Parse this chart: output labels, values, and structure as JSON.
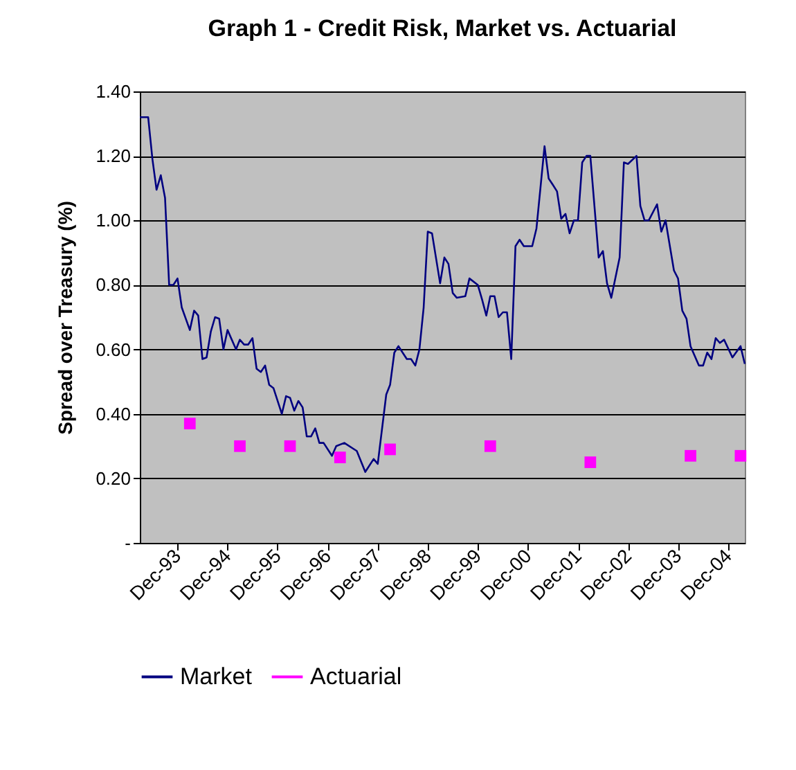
{
  "chart_data": {
    "type": "line",
    "title": "Graph 1 - Credit Risk, Market vs. Actuarial",
    "ylabel": "Spread over Treasury (%)",
    "xlim": [
      "1993-03",
      "2005-04"
    ],
    "xticks": [
      {
        "value": "1993-12",
        "label": "Dec-93"
      },
      {
        "value": "1994-12",
        "label": "Dec-94"
      },
      {
        "value": "1995-12",
        "label": "Dec-95"
      },
      {
        "value": "1996-12",
        "label": "Dec-96"
      },
      {
        "value": "1997-12",
        "label": "Dec-97"
      },
      {
        "value": "1998-12",
        "label": "Dec-98"
      },
      {
        "value": "1999-12",
        "label": "Dec-99"
      },
      {
        "value": "2000-12",
        "label": "Dec-00"
      },
      {
        "value": "2001-12",
        "label": "Dec-01"
      },
      {
        "value": "2002-12",
        "label": "Dec-02"
      },
      {
        "value": "2003-12",
        "label": "Dec-03"
      },
      {
        "value": "2004-12",
        "label": "Dec-04"
      }
    ],
    "ylim": [
      0,
      1.4
    ],
    "yticks": [
      {
        "value": 0,
        "label": "-"
      },
      {
        "value": 0.2,
        "label": "0.20"
      },
      {
        "value": 0.4,
        "label": "0.40"
      },
      {
        "value": 0.6,
        "label": "0.60"
      },
      {
        "value": 0.8,
        "label": "0.80"
      },
      {
        "value": 1.0,
        "label": "1.00"
      },
      {
        "value": 1.2,
        "label": "1.20"
      },
      {
        "value": 1.4,
        "label": "1.40"
      }
    ],
    "grid": "y",
    "legend": "bottom",
    "series": [
      {
        "name": "Market",
        "type": "line",
        "color": "#000080",
        "x": [
          "1993-03",
          "1993-05",
          "1993-06",
          "1993-07",
          "1993-08",
          "1993-09",
          "1993-10",
          "1993-11",
          "1993-12",
          "1994-01",
          "1994-03",
          "1994-04",
          "1994-05",
          "1994-06",
          "1994-07",
          "1994-08",
          "1994-09",
          "1994-10",
          "1994-11",
          "1994-12",
          "1995-02",
          "1995-03",
          "1995-04",
          "1995-05",
          "1995-06",
          "1995-07",
          "1995-08",
          "1995-09",
          "1995-10",
          "1995-11",
          "1996-01",
          "1996-02",
          "1996-03",
          "1996-04",
          "1996-05",
          "1996-06",
          "1996-07",
          "1996-08",
          "1996-09",
          "1996-10",
          "1996-11",
          "1997-01",
          "1997-02",
          "1997-04",
          "1997-07",
          "1997-09",
          "1997-11",
          "1997-12",
          "1998-02",
          "1998-03",
          "1998-04",
          "1998-05",
          "1998-07",
          "1998-08",
          "1998-09",
          "1998-10",
          "1998-11",
          "1998-12",
          "1999-01",
          "1999-03",
          "1999-04",
          "1999-05",
          "1999-06",
          "1999-07",
          "1999-09",
          "1999-10",
          "1999-12",
          "2000-01",
          "2000-02",
          "2000-03",
          "2000-04",
          "2000-05",
          "2000-06",
          "2000-07",
          "2000-08",
          "2000-09",
          "2000-10",
          "2000-11",
          "2001-01",
          "2001-02",
          "2001-04",
          "2001-05",
          "2001-06",
          "2001-07",
          "2001-08",
          "2001-09",
          "2001-10",
          "2001-11",
          "2001-12",
          "2002-01",
          "2002-02",
          "2002-03",
          "2002-05",
          "2002-06",
          "2002-07",
          "2002-08",
          "2002-10",
          "2002-11",
          "2002-12",
          "2003-02",
          "2003-03",
          "2003-04",
          "2003-05",
          "2003-07",
          "2003-08",
          "2003-09",
          "2003-11",
          "2003-12",
          "2004-01",
          "2004-02",
          "2004-03",
          "2004-05",
          "2004-06",
          "2004-07",
          "2004-08",
          "2004-09",
          "2004-10",
          "2004-11",
          "2005-01",
          "2005-03",
          "2005-04"
        ],
        "values": [
          1.32,
          1.32,
          1.19,
          1.095,
          1.14,
          1.07,
          0.8,
          0.8,
          0.82,
          0.73,
          0.66,
          0.72,
          0.705,
          0.57,
          0.575,
          0.655,
          0.7,
          0.695,
          0.6,
          0.66,
          0.6,
          0.63,
          0.615,
          0.615,
          0.635,
          0.54,
          0.53,
          0.55,
          0.49,
          0.48,
          0.4,
          0.455,
          0.45,
          0.41,
          0.44,
          0.42,
          0.33,
          0.33,
          0.355,
          0.31,
          0.31,
          0.27,
          0.3,
          0.31,
          0.285,
          0.22,
          0.26,
          0.245,
          0.46,
          0.49,
          0.59,
          0.61,
          0.57,
          0.57,
          0.55,
          0.6,
          0.73,
          0.965,
          0.96,
          0.805,
          0.885,
          0.865,
          0.775,
          0.76,
          0.765,
          0.82,
          0.8,
          0.755,
          0.705,
          0.765,
          0.765,
          0.7,
          0.715,
          0.715,
          0.57,
          0.92,
          0.94,
          0.92,
          0.92,
          0.975,
          1.23,
          1.13,
          1.11,
          1.09,
          1.005,
          1.02,
          0.96,
          1.0,
          1.0,
          1.18,
          1.2,
          1.2,
          0.885,
          0.905,
          0.805,
          0.76,
          0.885,
          1.18,
          1.175,
          1.2,
          1.045,
          1.0,
          1.0,
          1.05,
          0.965,
          1.0,
          0.845,
          0.82,
          0.72,
          0.695,
          0.61,
          0.55,
          0.55,
          0.59,
          0.57,
          0.635,
          0.62,
          0.63,
          0.575,
          0.61,
          0.555
        ]
      },
      {
        "name": "Actuarial",
        "type": "scatter",
        "marker": "square",
        "color": "#ff00ff",
        "x": [
          "1994-03",
          "1995-03",
          "1996-03",
          "1997-03",
          "1998-03",
          "2000-03",
          "2002-03",
          "2004-03",
          "2005-03"
        ],
        "values": [
          0.37,
          0.3,
          0.3,
          0.265,
          0.29,
          0.3,
          0.25,
          0.27,
          0.27
        ]
      }
    ]
  }
}
